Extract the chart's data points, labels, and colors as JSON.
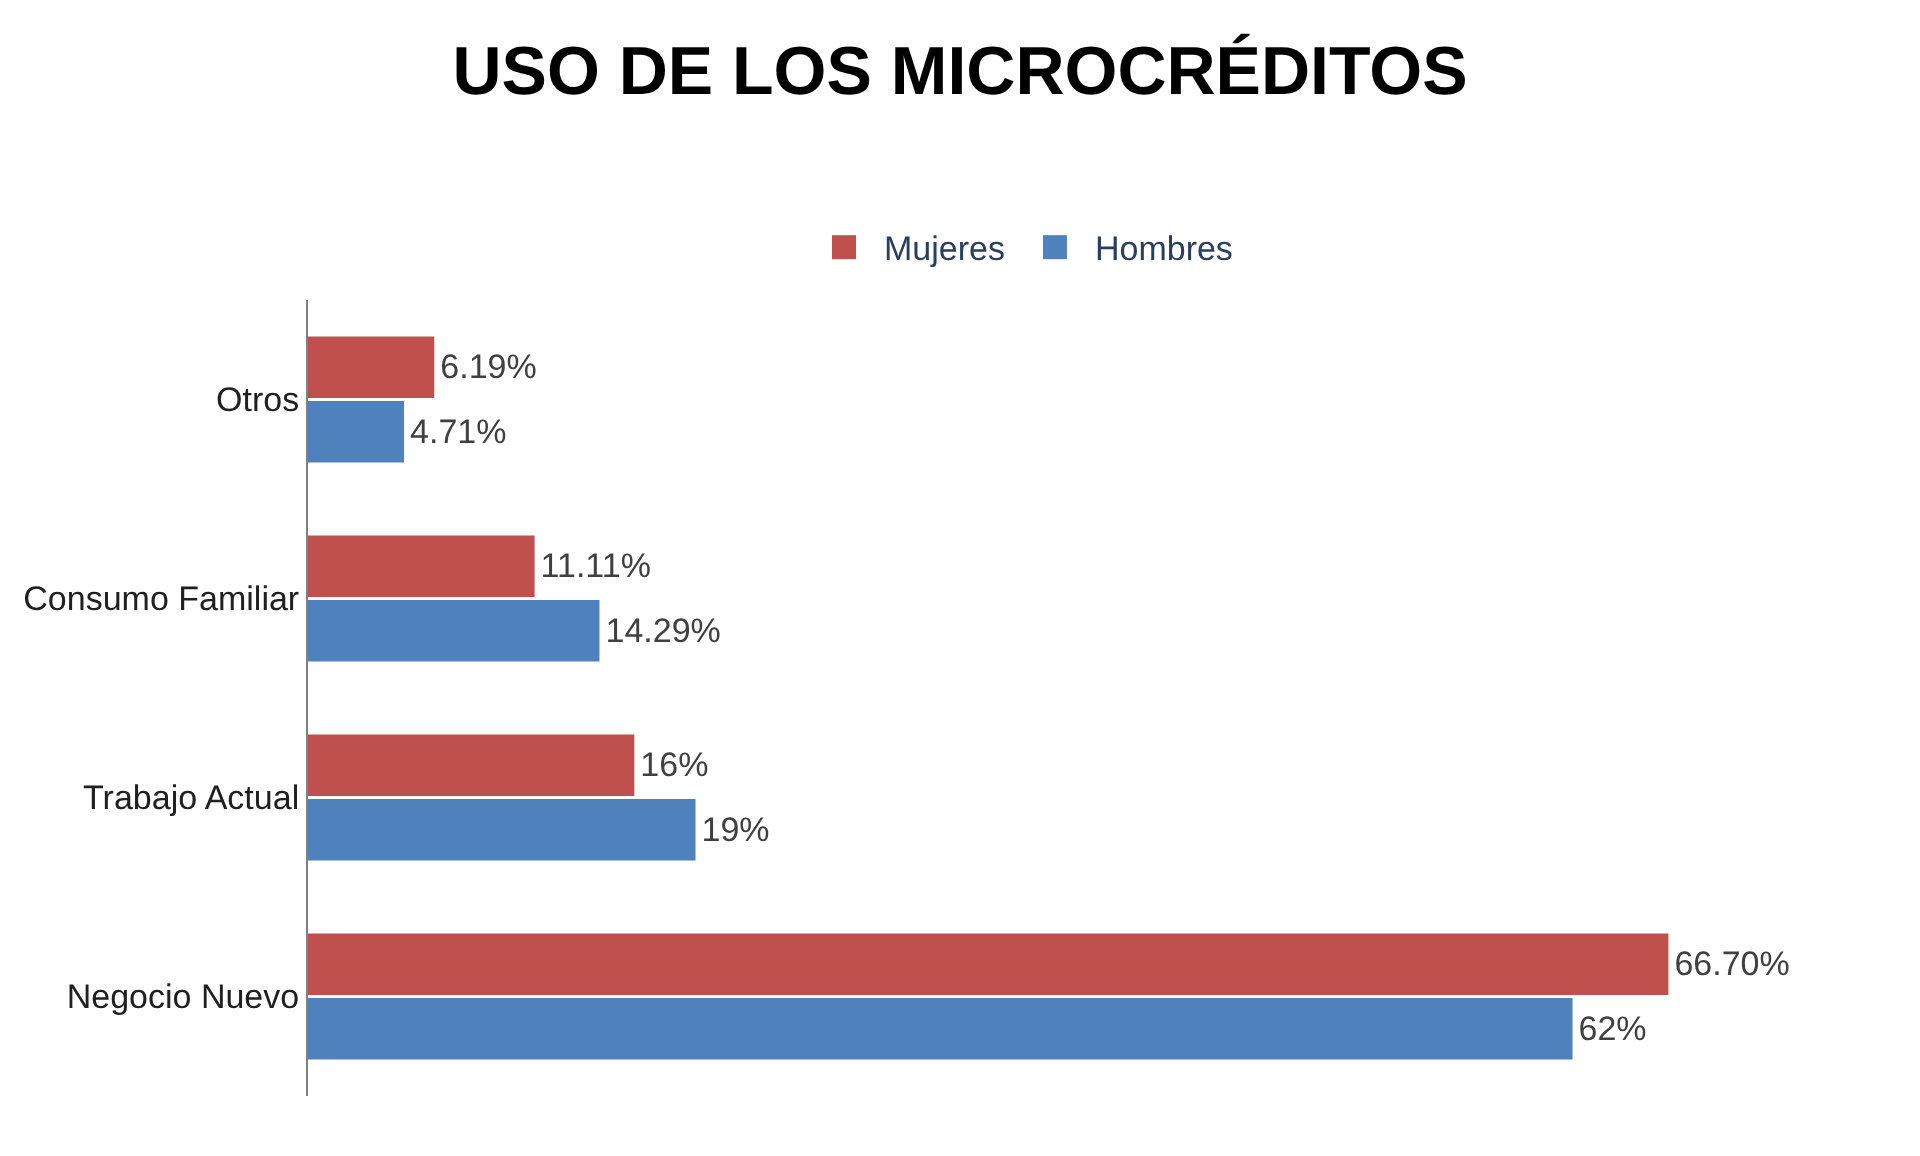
{
  "chart_data": {
    "type": "bar",
    "orientation": "horizontal",
    "title": "USO DE LOS MICROCRÉDITOS",
    "categories": [
      "Otros",
      "Consumo Familiar",
      "Trabajo Actual",
      "Negocio Nuevo"
    ],
    "series": [
      {
        "name": "Mujeres",
        "color": "#c0504d",
        "values": [
          6.19,
          11.11,
          16,
          66.7
        ],
        "value_labels": [
          "6.19%",
          "11.11%",
          "16%",
          "66.70%"
        ]
      },
      {
        "name": "Hombres",
        "color": "#4f81bd",
        "values": [
          4.71,
          14.29,
          19,
          62
        ],
        "value_labels": [
          "4.71%",
          "14.29%",
          "19%",
          "62%"
        ]
      }
    ],
    "legend": "top"
  }
}
